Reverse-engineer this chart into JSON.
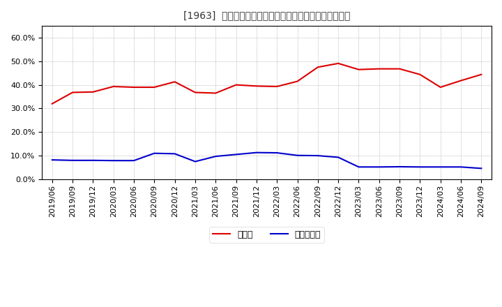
{
  "title": "[1963]  現預金、有利子負債の総資産に対する比率の推移",
  "x_labels": [
    "2019/06",
    "2019/09",
    "2019/12",
    "2020/03",
    "2020/06",
    "2020/09",
    "2020/12",
    "2021/03",
    "2021/06",
    "2021/09",
    "2021/12",
    "2022/03",
    "2022/06",
    "2022/09",
    "2022/12",
    "2023/03",
    "2023/06",
    "2023/09",
    "2023/12",
    "2024/03",
    "2024/06",
    "2024/09"
  ],
  "cash_values": [
    0.32,
    0.368,
    0.37,
    0.393,
    0.39,
    0.39,
    0.413,
    0.368,
    0.365,
    0.4,
    0.395,
    0.393,
    0.415,
    0.475,
    0.491,
    0.465,
    0.468,
    0.468,
    0.444,
    0.39,
    0.418,
    0.444
  ],
  "debt_values": [
    0.082,
    0.08,
    0.08,
    0.079,
    0.079,
    0.11,
    0.108,
    0.075,
    0.097,
    0.105,
    0.113,
    0.112,
    0.101,
    0.1,
    0.093,
    0.052,
    0.052,
    0.053,
    0.052,
    0.052,
    0.052,
    0.046
  ],
  "cash_color": "#dd0000",
  "debt_color": "#0000cc",
  "bg_color": "#ffffff",
  "plot_bg_color": "#ffffff",
  "grid_color": "#999999",
  "ylim": [
    0.0,
    0.65
  ],
  "yticks": [
    0.0,
    0.1,
    0.2,
    0.3,
    0.4,
    0.5,
    0.6
  ],
  "legend_cash": "現預金",
  "legend_debt": "有利子負債",
  "title_fontsize": 11,
  "tick_fontsize": 8,
  "legend_fontsize": 9
}
